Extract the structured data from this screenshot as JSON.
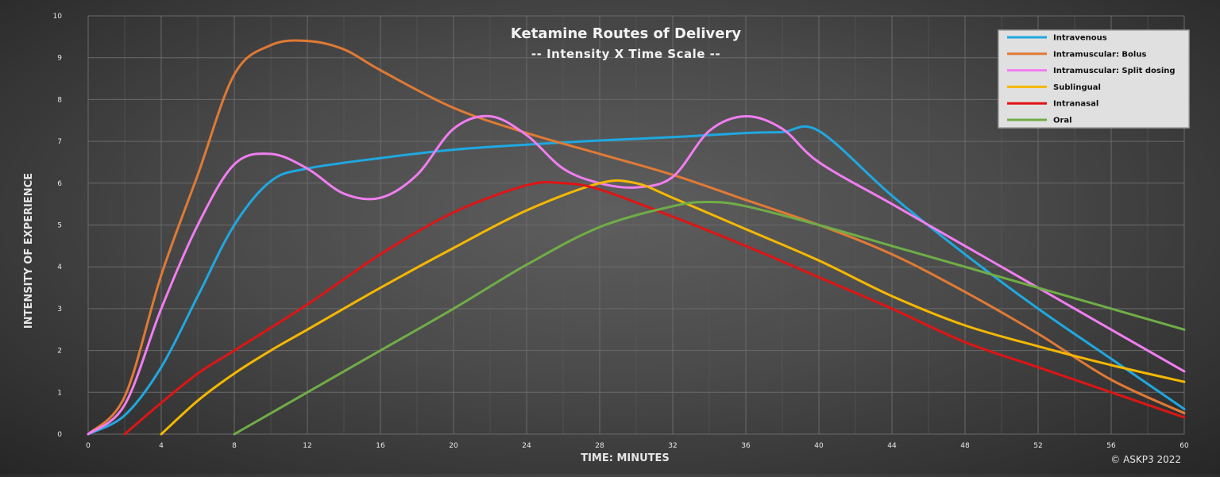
{
  "chart_data": {
    "type": "line",
    "title": "Ketamine Routes of Delivery",
    "subtitle": "-- Intensity X Time Scale --",
    "xlabel": "TIME:  MINUTES",
    "ylabel": "INTENSITY OF EXPERIENCE",
    "xlim": [
      0,
      60
    ],
    "ylim": [
      0,
      10
    ],
    "x_ticks": [
      0,
      4,
      8,
      12,
      16,
      20,
      24,
      28,
      32,
      36,
      40,
      44,
      48,
      52,
      56,
      60
    ],
    "y_ticks": [
      0,
      1,
      2,
      3,
      4,
      5,
      6,
      7,
      8,
      9,
      10
    ],
    "grid": true,
    "legend_position": "top-right",
    "copyright": "© ASKP3 2022",
    "series": [
      {
        "name": "Intravenous",
        "color": "#1fa8e0",
        "points": [
          [
            0,
            0
          ],
          [
            2,
            0.45
          ],
          [
            4,
            1.6
          ],
          [
            6,
            3.3
          ],
          [
            8,
            5.0
          ],
          [
            10,
            6.05
          ],
          [
            12,
            6.35
          ],
          [
            16,
            6.6
          ],
          [
            20,
            6.8
          ],
          [
            24,
            6.92
          ],
          [
            28,
            7.02
          ],
          [
            32,
            7.1
          ],
          [
            36,
            7.2
          ],
          [
            38,
            7.22
          ],
          [
            40,
            7.25
          ],
          [
            44,
            5.7
          ],
          [
            48,
            4.3
          ],
          [
            52,
            3.0
          ],
          [
            56,
            1.8
          ],
          [
            60,
            0.6
          ]
        ]
      },
      {
        "name": "Intramuscular: Bolus",
        "color": "#e07a35",
        "points": [
          [
            0,
            0
          ],
          [
            2,
            0.9
          ],
          [
            4,
            3.8
          ],
          [
            6,
            6.2
          ],
          [
            8,
            8.6
          ],
          [
            10,
            9.3
          ],
          [
            12,
            9.4
          ],
          [
            14,
            9.2
          ],
          [
            16,
            8.7
          ],
          [
            20,
            7.8
          ],
          [
            24,
            7.2
          ],
          [
            28,
            6.7
          ],
          [
            32,
            6.2
          ],
          [
            36,
            5.6
          ],
          [
            40,
            5.0
          ],
          [
            44,
            4.3
          ],
          [
            48,
            3.4
          ],
          [
            52,
            2.4
          ],
          [
            56,
            1.3
          ],
          [
            60,
            0.5
          ]
        ]
      },
      {
        "name": "Intramuscular: Split dosing",
        "color": "#f07ef0",
        "points": [
          [
            0,
            0
          ],
          [
            2,
            0.7
          ],
          [
            4,
            3.0
          ],
          [
            6,
            5.0
          ],
          [
            8,
            6.45
          ],
          [
            10,
            6.7
          ],
          [
            12,
            6.35
          ],
          [
            14,
            5.75
          ],
          [
            16,
            5.65
          ],
          [
            18,
            6.2
          ],
          [
            20,
            7.3
          ],
          [
            22,
            7.6
          ],
          [
            24,
            7.15
          ],
          [
            26,
            6.35
          ],
          [
            28,
            6.0
          ],
          [
            30,
            5.9
          ],
          [
            32,
            6.15
          ],
          [
            34,
            7.25
          ],
          [
            36,
            7.6
          ],
          [
            38,
            7.3
          ],
          [
            40,
            6.5
          ],
          [
            44,
            5.5
          ],
          [
            48,
            4.5
          ],
          [
            52,
            3.5
          ],
          [
            56,
            2.5
          ],
          [
            60,
            1.5
          ]
        ]
      },
      {
        "name": "Sublingual",
        "color": "#f5b800",
        "points": [
          [
            4,
            0
          ],
          [
            6,
            0.8
          ],
          [
            8,
            1.45
          ],
          [
            10,
            2.0
          ],
          [
            12,
            2.5
          ],
          [
            16,
            3.5
          ],
          [
            20,
            4.45
          ],
          [
            24,
            5.35
          ],
          [
            28,
            6.0
          ],
          [
            30,
            6.0
          ],
          [
            32,
            5.65
          ],
          [
            36,
            4.9
          ],
          [
            40,
            4.15
          ],
          [
            44,
            3.3
          ],
          [
            48,
            2.6
          ],
          [
            52,
            2.1
          ],
          [
            56,
            1.65
          ],
          [
            60,
            1.25
          ]
        ]
      },
      {
        "name": "Intranasal",
        "color": "#e01414",
        "points": [
          [
            2,
            0
          ],
          [
            4,
            0.75
          ],
          [
            6,
            1.45
          ],
          [
            8,
            2.0
          ],
          [
            12,
            3.1
          ],
          [
            16,
            4.3
          ],
          [
            20,
            5.3
          ],
          [
            24,
            5.95
          ],
          [
            26,
            6.0
          ],
          [
            28,
            5.85
          ],
          [
            32,
            5.2
          ],
          [
            36,
            4.5
          ],
          [
            40,
            3.75
          ],
          [
            44,
            3.0
          ],
          [
            48,
            2.2
          ],
          [
            52,
            1.6
          ],
          [
            56,
            1.0
          ],
          [
            60,
            0.4
          ]
        ]
      },
      {
        "name": "Oral",
        "color": "#70ad47",
        "points": [
          [
            8,
            0
          ],
          [
            12,
            1.0
          ],
          [
            16,
            2.0
          ],
          [
            20,
            3.0
          ],
          [
            24,
            4.05
          ],
          [
            28,
            4.95
          ],
          [
            32,
            5.45
          ],
          [
            34,
            5.55
          ],
          [
            36,
            5.45
          ],
          [
            40,
            5.0
          ],
          [
            44,
            4.5
          ],
          [
            48,
            4.0
          ],
          [
            52,
            3.5
          ],
          [
            56,
            3.0
          ],
          [
            60,
            2.5
          ]
        ]
      }
    ]
  }
}
